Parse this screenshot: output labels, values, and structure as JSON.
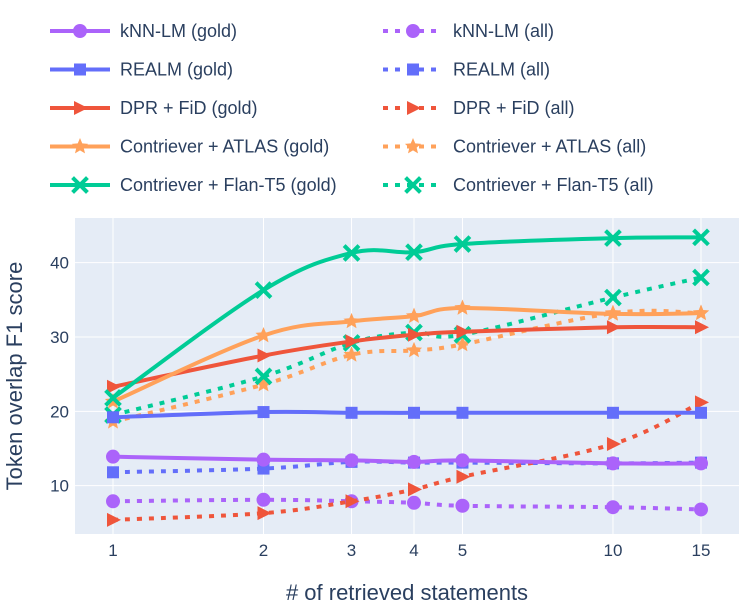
{
  "chart_data": {
    "type": "line",
    "title": "",
    "xlabel": "# of retrieved statements",
    "ylabel": "Token overlap F1 score",
    "xscale": "log",
    "x_ticks": [
      1,
      2,
      3,
      4,
      5,
      10,
      15
    ],
    "x_tick_labels": [
      "1",
      "2",
      "3",
      "4",
      "5",
      "10",
      "15"
    ],
    "y_ticks": [
      10,
      20,
      30,
      40
    ],
    "y_tick_labels": [
      "10",
      "20",
      "30",
      "40"
    ],
    "ylim": [
      3.5,
      46
    ],
    "grid": true,
    "legend_position": "top",
    "x": [
      1,
      2,
      3,
      4,
      5,
      10,
      15
    ],
    "series": [
      {
        "name": "kNN-LM (gold)",
        "color": "#ab63fa",
        "dash": "solid",
        "marker": "circle",
        "values": [
          13.9,
          13.5,
          13.4,
          13.2,
          13.4,
          13.0,
          13.0
        ]
      },
      {
        "name": "REALM (gold)",
        "color": "#636efa",
        "dash": "solid",
        "marker": "square",
        "values": [
          19.2,
          19.9,
          19.8,
          19.8,
          19.8,
          19.8,
          19.8
        ]
      },
      {
        "name": "DPR + FiD (gold)",
        "color": "#ef553b",
        "dash": "solid",
        "marker": "triangle-right",
        "values": [
          23.3,
          27.5,
          29.4,
          30.3,
          30.7,
          31.3,
          31.3
        ]
      },
      {
        "name": "Contriever + ATLAS (gold)",
        "color": "#ffa15a",
        "dash": "solid",
        "marker": "star",
        "values": [
          21.3,
          30.2,
          32.1,
          32.8,
          33.9,
          33.1,
          33.2
        ]
      },
      {
        "name": "Contriever + Flan-T5 (gold)",
        "color": "#00cc96",
        "dash": "solid",
        "marker": "x",
        "values": [
          21.8,
          36.3,
          41.3,
          41.4,
          42.5,
          43.3,
          43.4
        ]
      },
      {
        "name": "kNN-LM (all)",
        "color": "#ab63fa",
        "dash": "dot",
        "marker": "circle",
        "values": [
          7.9,
          8.1,
          7.9,
          7.7,
          7.3,
          7.1,
          6.8
        ]
      },
      {
        "name": "REALM (all)",
        "color": "#636efa",
        "dash": "dot",
        "marker": "square",
        "values": [
          11.8,
          12.3,
          13.2,
          13.1,
          13.1,
          13.0,
          13.1
        ]
      },
      {
        "name": "DPR + FiD (all)",
        "color": "#ef553b",
        "dash": "dot",
        "marker": "triangle-right",
        "values": [
          5.4,
          6.3,
          7.9,
          9.5,
          11.2,
          15.6,
          21.2
        ]
      },
      {
        "name": "Contriever + ATLAS (all)",
        "color": "#ffa15a",
        "dash": "dot",
        "marker": "star",
        "values": [
          18.6,
          23.6,
          27.6,
          28.2,
          29.0,
          33.2,
          33.2
        ]
      },
      {
        "name": "Contriever + Flan-T5 (all)",
        "color": "#00cc96",
        "dash": "dot",
        "marker": "x",
        "values": [
          19.5,
          24.7,
          29.2,
          30.6,
          30.3,
          35.3,
          38.0
        ]
      }
    ]
  }
}
